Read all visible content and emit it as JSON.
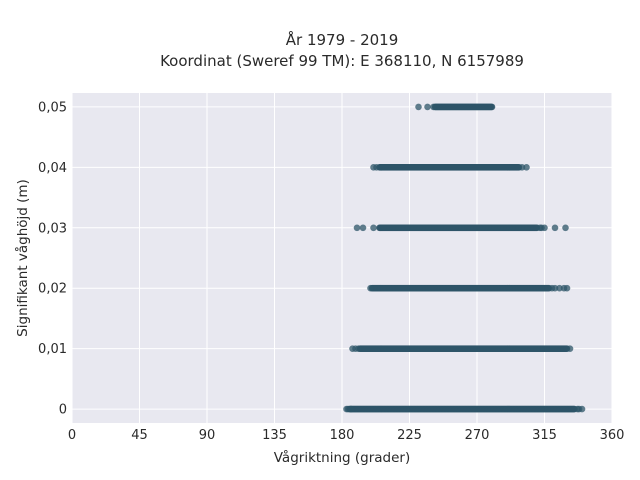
{
  "chart_data": {
    "type": "scatter",
    "title": "År 1979 - 2019",
    "subtitle": "Koordinat (Sweref 99 TM): E 368110, N 6157989",
    "xlabel": "Vågriktning (grader)",
    "ylabel": "Signifikant våghöjd (m)",
    "xlim": [
      0,
      360
    ],
    "ylim": [
      -0.0023,
      0.0523
    ],
    "x_ticks": [
      0,
      45,
      90,
      135,
      180,
      225,
      270,
      315,
      360
    ],
    "x_tick_labels": [
      "0",
      "45",
      "90",
      "135",
      "180",
      "225",
      "270",
      "315",
      "360"
    ],
    "y_ticks": [
      0,
      0.01,
      0.02,
      0.03,
      0.04,
      0.05
    ],
    "y_tick_labels": [
      "0",
      "0,01",
      "0,02",
      "0,03",
      "0,04",
      "0,05"
    ],
    "grid": true,
    "marker_color": "#2e5568",
    "background_color": "#e8e8f0",
    "series": [
      {
        "y": 0,
        "dense_range": [
          185,
          335
        ],
        "sparse_x": [
          183,
          184,
          186,
          337,
          338,
          340
        ]
      },
      {
        "y": 0.01,
        "dense_range": [
          192,
          330
        ],
        "sparse_x": [
          187,
          189,
          191,
          332
        ]
      },
      {
        "y": 0.02,
        "dense_range": [
          200,
          318
        ],
        "sparse_x": [
          199,
          320,
          322,
          325,
          328,
          330
        ]
      },
      {
        "y": 0.03,
        "dense_range": [
          205,
          310
        ],
        "sparse_x": [
          190,
          194,
          201,
          312,
          313,
          315,
          322,
          329
        ]
      },
      {
        "y": 0.04,
        "dense_range": [
          205,
          298
        ],
        "sparse_x": [
          201,
          203,
          300,
          303
        ]
      },
      {
        "y": 0.05,
        "dense_range": [
          242,
          280
        ],
        "sparse_x": [
          231,
          237,
          241
        ]
      }
    ]
  }
}
